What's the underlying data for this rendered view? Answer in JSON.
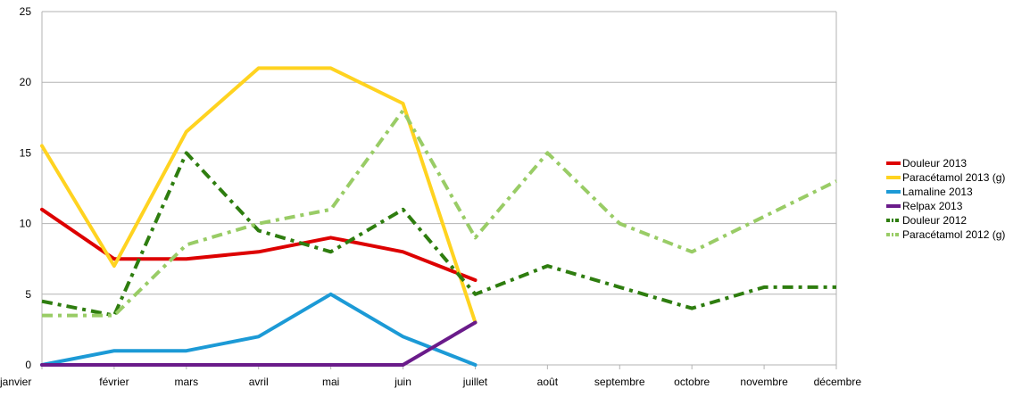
{
  "chart_data": {
    "type": "line",
    "categories": [
      "janvier",
      "février",
      "mars",
      "avril",
      "mai",
      "juin",
      "juillet",
      "août",
      "septembre",
      "octobre",
      "novembre",
      "décembre"
    ],
    "ylim": [
      0,
      25
    ],
    "yticks": [
      0,
      5,
      10,
      15,
      20,
      25
    ],
    "grid": "horizontal",
    "legend_position": "right",
    "series": [
      {
        "name": "Douleur 2013",
        "color": "#dd0000",
        "style": "solid",
        "values": [
          11,
          7.5,
          7.5,
          8,
          9,
          8,
          6,
          null,
          null,
          null,
          null,
          null
        ]
      },
      {
        "name": "Paracétamol 2013 (g)",
        "color": "#ffd320",
        "style": "solid",
        "values": [
          15.5,
          7,
          16.5,
          21,
          21,
          18.5,
          3,
          null,
          null,
          null,
          null,
          null
        ]
      },
      {
        "name": "Lamaline 2013",
        "color": "#1c9ad6",
        "style": "solid",
        "values": [
          0,
          1,
          1,
          2,
          5,
          2,
          0,
          null,
          null,
          null,
          null,
          null
        ]
      },
      {
        "name": "Relpax 2013",
        "color": "#6a1b8a",
        "style": "solid",
        "values": [
          0,
          0,
          0,
          0,
          0,
          0,
          3,
          null,
          null,
          null,
          null,
          null
        ]
      },
      {
        "name": "Douleur 2012",
        "color": "#2e7d0f",
        "style": "dashdot",
        "values": [
          4.5,
          3.5,
          15,
          9.5,
          8,
          11,
          5,
          7,
          5.5,
          4,
          5.5,
          5.5
        ]
      },
      {
        "name": "Paracétamol 2012 (g)",
        "color": "#99cc66",
        "style": "dashdot",
        "values": [
          3.5,
          3.5,
          8.5,
          10,
          11,
          18,
          9,
          15,
          10,
          8,
          10.5,
          13
        ]
      }
    ]
  }
}
